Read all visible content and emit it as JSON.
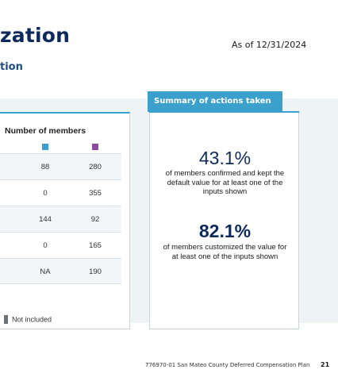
{
  "header": {
    "title": "zation",
    "as_of": "As of 12/31/2024",
    "subtitle": "tion"
  },
  "members_table": {
    "column_title": "Number of members",
    "legend_colors": {
      "first": "#3a9fd0",
      "second": "#8e4a9b"
    },
    "rows": [
      {
        "first": "88",
        "second": "280"
      },
      {
        "first": "0",
        "second": "355"
      },
      {
        "first": "144",
        "second": "92"
      },
      {
        "first": "0",
        "second": "165"
      },
      {
        "first": "NA",
        "second": "190"
      }
    ],
    "legend_not_included": "Not included"
  },
  "summary": {
    "tab_label": "Summary of actions taken",
    "stat1_value": "43.1%",
    "stat1_desc": "of members confirmed and kept the default value for at least one of the inputs shown",
    "stat2_value": "82.1%",
    "stat2_desc": "of members customized the value for at least one of the inputs shown"
  },
  "footer": {
    "text": "776970-01 San Mateo County Deferred Compensation Plan",
    "page": "21"
  }
}
